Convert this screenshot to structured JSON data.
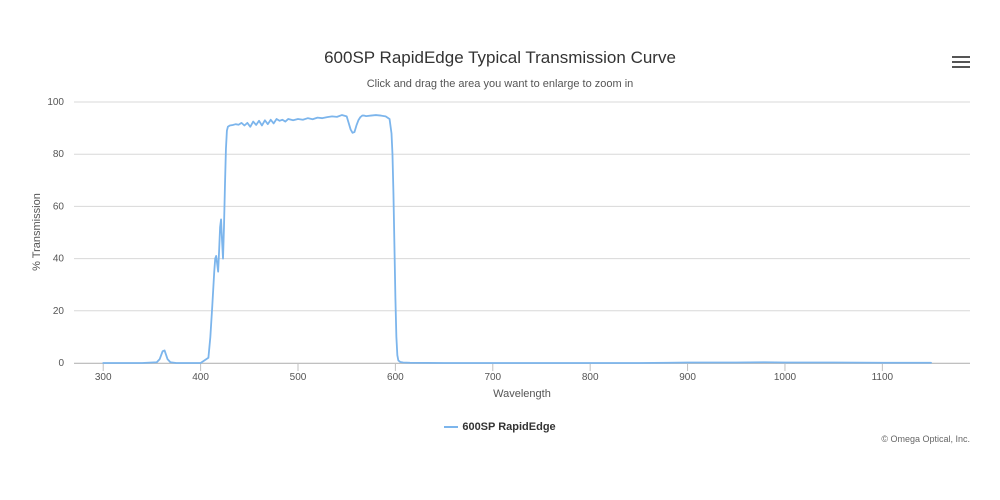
{
  "colors": {
    "series": "#7cb5ec",
    "grid": "#d8d8d8",
    "text": "#555555"
  },
  "menu": {
    "icon": "hamburger-menu-icon"
  },
  "credits": "© Omega Optical, Inc.",
  "chart_data": {
    "type": "line",
    "title": "600SP RapidEdge Typical Transmission Curve",
    "subtitle": "Click and drag the area you want to enlarge to zoom in",
    "xlabel": "Wavelength",
    "ylabel": "% Transmission",
    "xlim": [
      270,
      1190
    ],
    "ylim": [
      0,
      100
    ],
    "xticks": [
      300,
      400,
      500,
      600,
      700,
      800,
      900,
      1000,
      1100
    ],
    "yticks": [
      0,
      20,
      40,
      60,
      80,
      100
    ],
    "grid": "horizontal",
    "legend_position": "bottom-center",
    "series": [
      {
        "name": "600SP RapidEdge",
        "x": [
          300,
          340,
          355,
          358,
          361,
          363,
          366,
          369,
          375,
          400,
          408,
          410,
          412,
          414,
          415,
          416,
          417,
          418,
          419,
          420,
          421,
          422,
          423,
          424,
          425,
          426,
          427,
          428,
          430,
          433,
          436,
          439,
          442,
          445,
          448,
          451,
          454,
          457,
          460,
          463,
          466,
          469,
          472,
          475,
          478,
          481,
          484,
          487,
          490,
          495,
          500,
          505,
          510,
          515,
          520,
          525,
          530,
          535,
          540,
          545,
          550,
          552,
          554,
          556,
          558,
          560,
          562,
          564,
          566,
          568,
          570,
          575,
          580,
          585,
          590,
          594,
          596,
          597,
          598,
          599,
          600,
          601,
          602,
          603,
          605,
          608,
          615,
          650,
          700,
          750,
          800,
          850,
          880,
          900,
          950,
          980,
          1000,
          1050,
          1100,
          1150
        ],
        "y": [
          0,
          0,
          0.3,
          1.5,
          4.5,
          4.8,
          1.5,
          0.3,
          0,
          0,
          2,
          10,
          22,
          35,
          40,
          41,
          38,
          35,
          43,
          52,
          55,
          47,
          40,
          52,
          68,
          82,
          89,
          90.5,
          91,
          91.2,
          91.5,
          91.3,
          92,
          91,
          92,
          90.5,
          92.5,
          91.2,
          92.8,
          91,
          93,
          91.5,
          93.2,
          91.8,
          93.5,
          92.8,
          93.2,
          92.5,
          93.5,
          93,
          93.5,
          93.2,
          93.8,
          93.4,
          94,
          93.8,
          94.2,
          94.5,
          94.3,
          95,
          94.5,
          92,
          89.5,
          88.2,
          88.5,
          91,
          93,
          94.2,
          94.8,
          94.8,
          94.6,
          94.8,
          95,
          94.8,
          94.5,
          93.5,
          88,
          80,
          65,
          45,
          25,
          10,
          3,
          1,
          0.4,
          0.2,
          0.1,
          0,
          0,
          0,
          0,
          0,
          0.1,
          0.2,
          0.2,
          0.3,
          0.2,
          0.2,
          0.1,
          0.1
        ]
      }
    ]
  }
}
